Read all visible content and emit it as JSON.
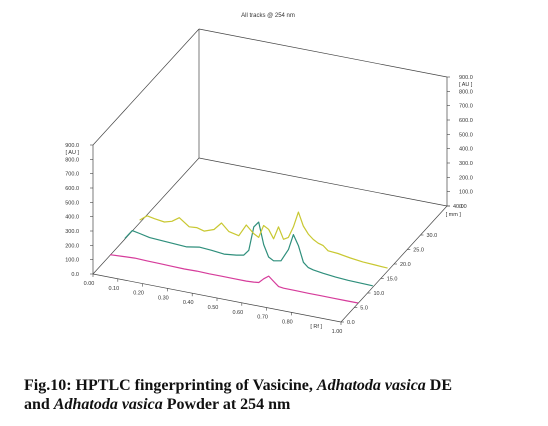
{
  "chart_data": {
    "type": "line",
    "title": "All tracks @ 254 nm",
    "x_axis": {
      "label": "[ Rf ]",
      "ticks": [
        "0.00",
        "0.10",
        "0.20",
        "0.30",
        "0.40",
        "0.50",
        "0.60",
        "0.70",
        "0.80",
        "1.00"
      ]
    },
    "left_axis": {
      "label": "[ AU ]",
      "ticks": [
        "0.0",
        "100.0",
        "200.0",
        "300.0",
        "400.0",
        "500.0",
        "600.0",
        "700.0",
        "800.0",
        "900.0"
      ]
    },
    "right_axis": {
      "label": "[ AU ]",
      "ticks": [
        "0.0",
        "100.0",
        "200.0",
        "300.0",
        "400.0",
        "500.0",
        "600.0",
        "700.0",
        "800.0",
        "900.0"
      ]
    },
    "depth_axis": {
      "label": "[ mm ]",
      "ticks": [
        "0.0",
        "5.0",
        "10.0",
        "15.0",
        "20.0",
        "25.0",
        "30.0",
        "40.0"
      ]
    },
    "series": [
      {
        "color": "#d63c9b",
        "x": [
          0.0,
          0.05,
          0.1,
          0.15,
          0.2,
          0.25,
          0.3,
          0.35,
          0.4,
          0.45,
          0.5,
          0.55,
          0.58,
          0.6,
          0.62,
          0.64,
          0.66,
          0.68,
          0.7,
          0.75,
          0.8,
          0.85,
          0.9,
          0.95,
          1.0
        ],
        "y": [
          5,
          10,
          15,
          12,
          10,
          8,
          6,
          8,
          6,
          6,
          5,
          5,
          8,
          12,
          45,
          70,
          40,
          10,
          6,
          5,
          4,
          4,
          3,
          3,
          3
        ]
      },
      {
        "color": "#2f8f7c",
        "x": [
          0.0,
          0.03,
          0.06,
          0.1,
          0.15,
          0.2,
          0.25,
          0.3,
          0.35,
          0.4,
          0.45,
          0.48,
          0.5,
          0.52,
          0.54,
          0.56,
          0.58,
          0.6,
          0.63,
          0.66,
          0.68,
          0.7,
          0.72,
          0.74,
          0.76,
          0.8,
          0.85,
          0.9,
          0.95,
          1.0
        ],
        "y": [
          5,
          70,
          60,
          45,
          40,
          35,
          30,
          45,
          40,
          30,
          40,
          50,
          90,
          260,
          300,
          150,
          70,
          50,
          60,
          150,
          260,
          190,
          80,
          50,
          40,
          30,
          20,
          15,
          12,
          10
        ]
      },
      {
        "color": "#c9c832",
        "x": [
          0.0,
          0.03,
          0.06,
          0.1,
          0.13,
          0.16,
          0.2,
          0.23,
          0.26,
          0.3,
          0.33,
          0.36,
          0.4,
          0.43,
          0.46,
          0.48,
          0.5,
          0.52,
          0.54,
          0.56,
          0.58,
          0.6,
          0.62,
          0.64,
          0.66,
          0.68,
          0.7,
          0.72,
          0.74,
          0.76,
          0.8,
          0.85,
          0.9,
          0.95,
          1.0
        ],
        "y": [
          20,
          60,
          50,
          40,
          55,
          90,
          40,
          45,
          30,
          55,
          110,
          60,
          45,
          130,
          80,
          60,
          150,
          130,
          70,
          160,
          80,
          100,
          180,
          290,
          200,
          150,
          120,
          100,
          90,
          60,
          55,
          40,
          30,
          25,
          20
        ]
      }
    ],
    "grid": false,
    "legend": "none"
  },
  "caption": {
    "line1_prefix": "Fig.10: HPTLC fingerprinting of Vasicine, ",
    "line1_italic": "Adhatoda vasica",
    "line1_suffix": " DE",
    "line2_prefix": "and ",
    "line2_italic": "Adhatoda vasica",
    "line2_suffix": " Powder at 254 nm"
  }
}
